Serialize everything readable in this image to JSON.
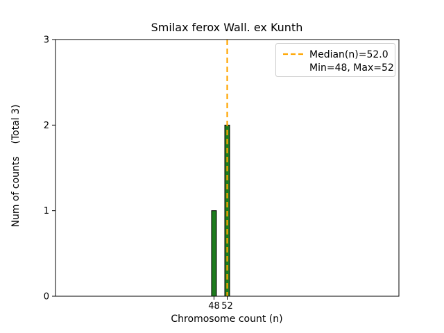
{
  "chart_data": {
    "type": "bar",
    "title": "Smilax ferox Wall. ex Kunth",
    "xlabel": "Chromosome count (n)",
    "ylabel": "Num of counts    (Total 3)",
    "categories": [
      48,
      52
    ],
    "values": [
      1,
      2
    ],
    "total_counts": 3,
    "median": 52.0,
    "min": 48,
    "max": 52,
    "xlim": [
      0,
      104
    ],
    "ylim": [
      0,
      3
    ],
    "yticks": [
      0,
      1,
      2,
      3
    ],
    "bar_color": "#1e7b1e",
    "bar_edge_color": "#000000",
    "median_color": "#ffa500",
    "legend": [
      "Median(n)=52.0",
      "Min=48, Max=52"
    ],
    "legend_position": "upper right",
    "grid": false
  }
}
